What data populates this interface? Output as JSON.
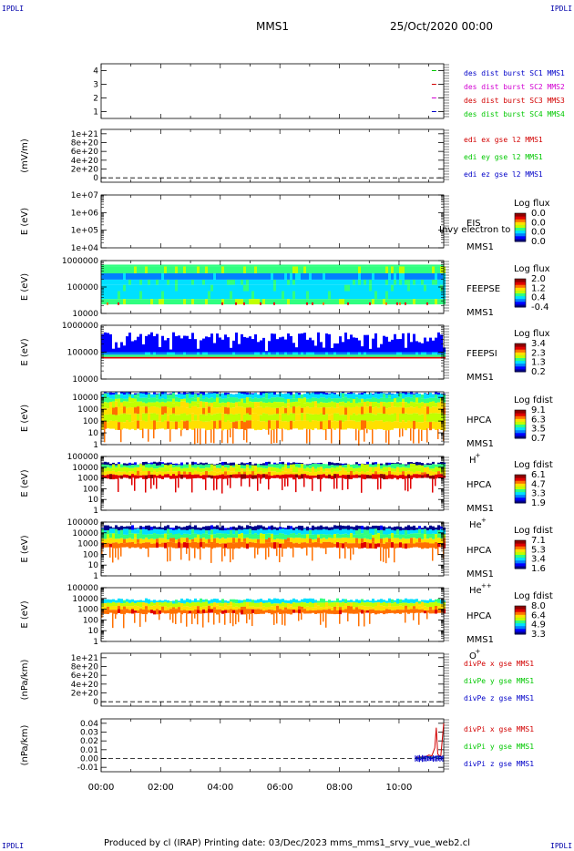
{
  "header": {
    "corner_label": "IPDLI",
    "title": "MMS1",
    "date": "25/Oct/2020 00:00"
  },
  "footer": {
    "text": "Produced by cl (IRAP)   Printing date: 03/Dec/2023   mms_mms1_srvy_vue_web2.cl"
  },
  "colors": {
    "blue": "#0000c8",
    "magenta": "#d200d2",
    "red": "#d20000",
    "green": "#00c800",
    "colormap": [
      "#00008c",
      "#0000ff",
      "#0080ff",
      "#00e0ff",
      "#30ff80",
      "#c0ff00",
      "#ffe000",
      "#ff7000",
      "#e00000",
      "#900000"
    ]
  },
  "time_axis": {
    "ticks": [
      "00:00",
      "02:00",
      "04:00",
      "06:00",
      "08:00",
      "10:00"
    ],
    "tick_hours": [
      0,
      2,
      4,
      6,
      8,
      10
    ],
    "range_hours": [
      0,
      11.5
    ]
  },
  "chart_data": [
    {
      "type": "line",
      "ylim": [
        0.5,
        4.5
      ],
      "yticks": [
        "1",
        "2",
        "3",
        "4"
      ],
      "ytick_values": [
        1,
        2,
        3,
        4
      ],
      "series": [
        {
          "name": "des dist burst SC1 MMS1",
          "color": "blue",
          "x": [
            11.1,
            11.25
          ],
          "y": [
            1,
            1
          ]
        },
        {
          "name": "des dist burst SC2 MMS2",
          "color": "magenta",
          "x": [
            11.1,
            11.25
          ],
          "y": [
            2,
            2
          ]
        },
        {
          "name": "des dist burst SC3 MMS3",
          "color": "red",
          "x": [
            11.1,
            11.25
          ],
          "y": [
            3,
            3
          ]
        },
        {
          "name": "des dist burst SC4 MMS4",
          "color": "green",
          "x": [
            11.1,
            11.25
          ],
          "y": [
            4,
            4
          ]
        }
      ]
    },
    {
      "type": "line",
      "ylabel": "(mV/m)",
      "ylim": [
        -1e+20,
        1.1e+21
      ],
      "yticks": [
        "1e+21",
        "8e+20",
        "6e+20",
        "4e+20",
        "2e+20",
        "0"
      ],
      "ytick_values": [
        1e+21,
        8e+20,
        6e+20,
        4e+20,
        2e+20,
        0
      ],
      "zero_line": true,
      "series": [
        {
          "name": "edi ex gse l2 MMS1",
          "color": "red"
        },
        {
          "name": "edi ey gse l2 MMS1",
          "color": "green"
        },
        {
          "name": "edi ez gse l2 MMS1",
          "color": "blue"
        }
      ]
    },
    {
      "type": "heatmap",
      "ylabel": "E (eV)",
      "log": true,
      "ylim": [
        10000,
        10000000
      ],
      "yticks": [
        "1e+07",
        "1e+06",
        "1e+05",
        "1e+04"
      ],
      "ytick_values": [
        10000000,
        1000000,
        100000,
        10000
      ],
      "instrument": [
        "EIS",
        "MMS1"
      ],
      "overlay_text": "Invy electron to",
      "colorbar": {
        "title": "Log flux",
        "ticks": [
          "0.0",
          "0.0",
          "0.0",
          "0.0"
        ]
      },
      "data": "empty"
    },
    {
      "type": "heatmap",
      "ylabel": "E (eV)",
      "log": true,
      "ylim": [
        10000,
        1000000
      ],
      "yticks": [
        "1000000",
        "100000",
        "10000"
      ],
      "ytick_values": [
        1000000,
        100000,
        10000
      ],
      "instrument": [
        "FEEPSE",
        "MMS1"
      ],
      "colorbar": {
        "title": "Log flux",
        "ticks": [
          "2.0",
          "1.2",
          "0.4",
          "-0.4"
        ]
      },
      "data": "feepse"
    },
    {
      "type": "heatmap",
      "ylabel": "E (eV)",
      "log": true,
      "ylim": [
        10000,
        1000000
      ],
      "yticks": [
        "1000000",
        "100000",
        "10000"
      ],
      "ytick_values": [
        1000000,
        100000,
        10000
      ],
      "instrument": [
        "FEEPSI",
        "MMS1"
      ],
      "colorbar": {
        "title": "Log flux",
        "ticks": [
          "3.4",
          "2.3",
          "1.3",
          "0.2"
        ]
      },
      "data": "feepsi"
    },
    {
      "type": "heatmap",
      "ylabel": "E (eV)",
      "log": true,
      "ylim": [
        1,
        30000
      ],
      "yticks": [
        "10000",
        "1000",
        "100",
        "10",
        "1"
      ],
      "ytick_values": [
        10000,
        1000,
        100,
        10,
        1
      ],
      "instrument": [
        "HPCA",
        "MMS1",
        "H",
        "+"
      ],
      "colorbar": {
        "title": "Log fdist",
        "ticks": [
          "9.1",
          "6.3",
          "3.5",
          "0.7"
        ]
      },
      "data": "hplus"
    },
    {
      "type": "heatmap",
      "ylabel": "E (eV)",
      "log": true,
      "ylim": [
        1,
        100000
      ],
      "yticks": [
        "100000",
        "10000",
        "1000",
        "100",
        "10",
        "1"
      ],
      "ytick_values": [
        100000,
        10000,
        1000,
        100,
        10,
        1
      ],
      "instrument": [
        "HPCA",
        "MMS1",
        "He",
        "+"
      ],
      "colorbar": {
        "title": "Log fdist",
        "ticks": [
          "6.1",
          "4.7",
          "3.3",
          "1.9"
        ]
      },
      "data": "heplus"
    },
    {
      "type": "heatmap",
      "ylabel": "E (eV)",
      "log": true,
      "ylim": [
        1,
        100000
      ],
      "yticks": [
        "100000",
        "10000",
        "1000",
        "100",
        "10",
        "1"
      ],
      "ytick_values": [
        100000,
        10000,
        1000,
        100,
        10,
        1
      ],
      "instrument": [
        "HPCA",
        "MMS1",
        "He",
        "++"
      ],
      "colorbar": {
        "title": "Log fdist",
        "ticks": [
          "7.1",
          "5.3",
          "3.4",
          "1.6"
        ]
      },
      "data": "heplusplus"
    },
    {
      "type": "heatmap",
      "ylabel": "E (eV)",
      "log": true,
      "ylim": [
        1,
        100000
      ],
      "yticks": [
        "100000",
        "10000",
        "1000",
        "100",
        "10",
        "1"
      ],
      "ytick_values": [
        100000,
        10000,
        1000,
        100,
        10,
        1
      ],
      "instrument": [
        "HPCA",
        "MMS1",
        "O",
        "+"
      ],
      "colorbar": {
        "title": "Log fdist",
        "ticks": [
          "8.0",
          "6.4",
          "4.9",
          "3.3"
        ]
      },
      "data": "oplus"
    },
    {
      "type": "line",
      "ylabel": "(nPa/km)",
      "ylim": [
        -1e+20,
        1.1e+21
      ],
      "yticks": [
        "1e+21",
        "8e+20",
        "6e+20",
        "4e+20",
        "2e+20",
        "0"
      ],
      "ytick_values": [
        1e+21,
        8e+20,
        6e+20,
        4e+20,
        2e+20,
        0
      ],
      "zero_line": true,
      "series": [
        {
          "name": "divPe x gse MMS1",
          "color": "red"
        },
        {
          "name": "divPe y gse MMS1",
          "color": "green"
        },
        {
          "name": "divPe z gse MMS1",
          "color": "blue"
        }
      ]
    },
    {
      "type": "line",
      "ylabel": "(nPa/km)",
      "ylim": [
        -0.015,
        0.045
      ],
      "yticks": [
        "0.04",
        "0.03",
        "0.02",
        "0.01",
        "0.00",
        "-0.01"
      ],
      "ytick_values": [
        0.04,
        0.03,
        0.02,
        0.01,
        0.0,
        -0.01
      ],
      "zero_line": true,
      "series": [
        {
          "name": "divPi x gse MMS1",
          "color": "red",
          "x": [
            10.55,
            10.9,
            11.0,
            11.1,
            11.2,
            11.25,
            11.3,
            11.4,
            11.5
          ],
          "y": [
            0.001,
            0.002,
            0.004,
            0.003,
            0.012,
            0.035,
            0.005,
            0.002,
            0.04
          ]
        },
        {
          "name": "divPi y gse MMS1",
          "color": "green",
          "x": [
            10.55,
            10.8,
            11.0,
            11.2,
            11.4,
            11.5
          ],
          "y": [
            0.0,
            0.001,
            0.002,
            0.001,
            0.002,
            0.001
          ]
        },
        {
          "name": "divPi z gse MMS1",
          "color": "blue",
          "x": [
            10.55,
            10.7,
            10.9,
            11.1,
            11.3,
            11.5
          ],
          "y": [
            0.001,
            -0.001,
            0.002,
            0.0,
            0.003,
            0.001
          ]
        }
      ]
    }
  ]
}
